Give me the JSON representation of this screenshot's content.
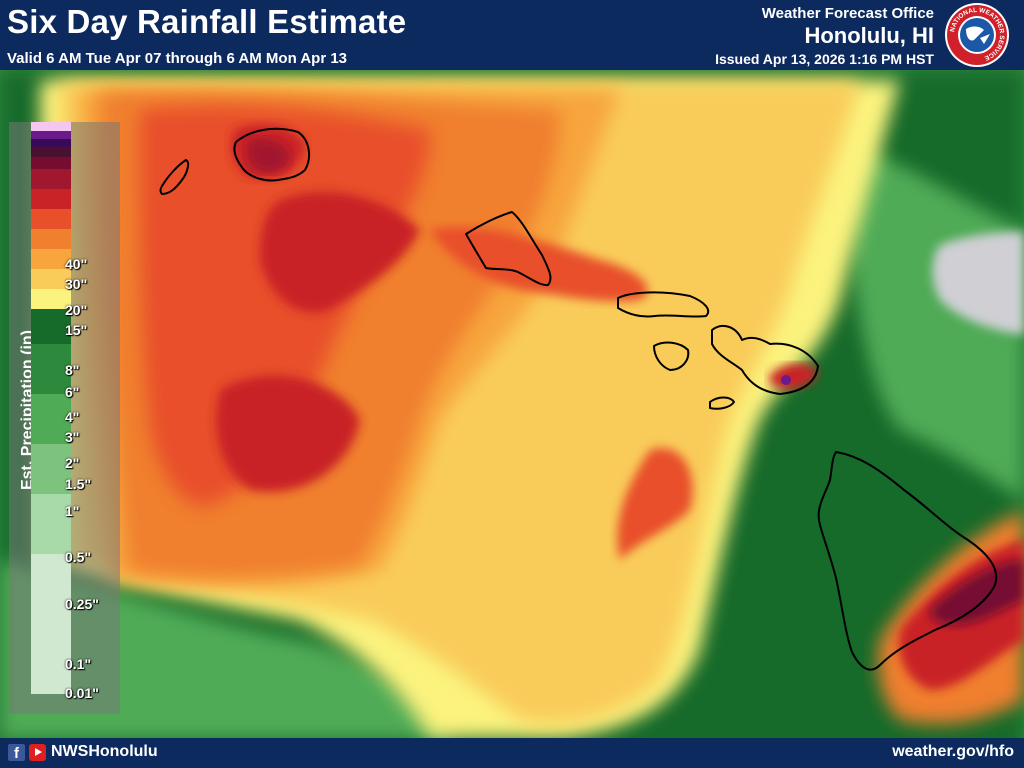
{
  "header": {
    "title": "Six Day Rainfall Estimate",
    "valid": "Valid 6 AM Tue Apr 07 through 6 AM Mon Apr 13",
    "office_label": "Weather Forecast Office",
    "office_name": "Honolulu, HI",
    "issued": "Issued Apr 13, 2026 1:16 PM HST",
    "logo_text": "NATIONAL WEATHER SERVICE"
  },
  "legend": {
    "title": "Est. Precipitation (in)",
    "bins": [
      {
        "color": "#cfe8cf"
      },
      {
        "color": "#a8d9a8"
      },
      {
        "color": "#7dc37d"
      },
      {
        "color": "#4fab56"
      },
      {
        "color": "#2d8a3c"
      },
      {
        "color": "#176b2a"
      },
      {
        "color": "#fbf37e"
      },
      {
        "color": "#f9cc5a"
      },
      {
        "color": "#f7a53c"
      },
      {
        "color": "#f07f2e"
      },
      {
        "color": "#e8502a"
      },
      {
        "color": "#c92327"
      },
      {
        "color": "#a1172e"
      },
      {
        "color": "#760d31"
      },
      {
        "color": "#4a1030"
      },
      {
        "color": "#3a0a5a"
      },
      {
        "color": "#6a1a8a"
      },
      {
        "color": "#f5c6f0"
      }
    ],
    "labels": [
      "0.01\"",
      "0.1\"",
      "0.25\"",
      "0.5\"",
      "1\"",
      "1.5\"",
      "2\"",
      "3\"",
      "4\"",
      "6\"",
      "8\"",
      "15\"",
      "20\"",
      "30\"",
      "40\""
    ]
  },
  "map": {
    "islands": [
      "Kauai",
      "Niihau",
      "Oahu",
      "Molokai",
      "Lanai",
      "Maui",
      "Kahoolawe",
      "Hawaii"
    ],
    "colors": {
      "cloud": "#cfcfd4"
    }
  },
  "footer": {
    "social_handle": "NWSHonolulu",
    "website": "weather.gov/hfo"
  }
}
